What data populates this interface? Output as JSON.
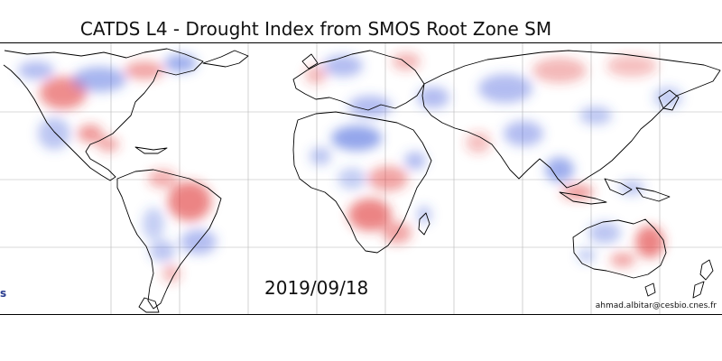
{
  "title": "CATDS L4 - Drought Index from SMOS Root Zone SM",
  "date": "2019/09/18",
  "credit": "ahmad.albitar@cesbio.cnes.fr",
  "logo_fragment": "s",
  "colors": {
    "wet": "#3b5bdb",
    "dry": "#e03131",
    "coast": "#000000",
    "grid": "#b5b5b5"
  },
  "map": {
    "projection": "equirectangular",
    "gridlines": true,
    "legend": "none"
  }
}
